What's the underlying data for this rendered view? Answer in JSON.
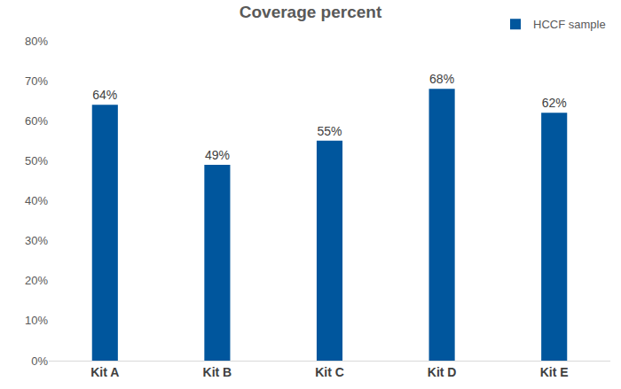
{
  "chart_data": {
    "type": "bar",
    "title": "Coverage percent",
    "categories": [
      "Kit A",
      "Kit B",
      "Kit C",
      "Kit D",
      "Kit E"
    ],
    "series": [
      {
        "name": "HCCF sample",
        "color": "#00569d",
        "values": [
          64,
          49,
          55,
          68,
          62
        ],
        "value_labels": [
          "64%",
          "49%",
          "55%",
          "68%",
          "62%"
        ]
      }
    ],
    "ylim": [
      0,
      80
    ],
    "yticks": [
      {
        "value": 0,
        "label": "0%"
      },
      {
        "value": 10,
        "label": "10%"
      },
      {
        "value": 20,
        "label": "20%"
      },
      {
        "value": 30,
        "label": "30%"
      },
      {
        "value": 40,
        "label": "40%"
      },
      {
        "value": 50,
        "label": "50%"
      },
      {
        "value": 60,
        "label": "60%"
      },
      {
        "value": 70,
        "label": "70%"
      },
      {
        "value": 80,
        "label": "80%"
      }
    ],
    "grid": false,
    "legend": "top-right",
    "data_labels": true
  }
}
